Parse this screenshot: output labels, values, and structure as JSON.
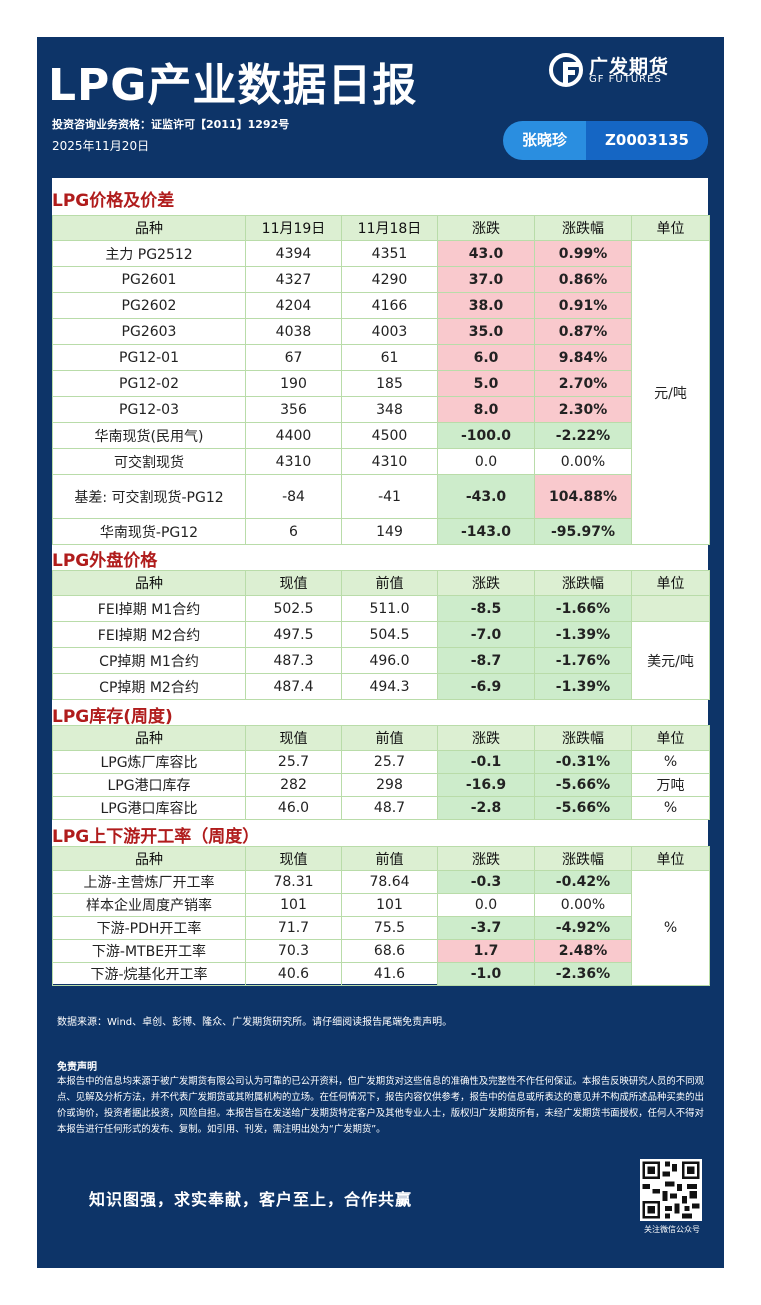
{
  "header": {
    "title": "LPG产业数据日报",
    "logo_cn": "广发期货",
    "logo_en": "GF FUTURES",
    "qualification": "投资咨询业务资格：证监许可【2011】1292号",
    "date": "2025年11月20日",
    "analyst_name": "张晓珍",
    "analyst_id": "Z0003135"
  },
  "colors": {
    "navy": "#0d3468",
    "section_red": "#b01c1c",
    "up_bg": "#f9c9cd",
    "down_bg": "#cdeccb"
  },
  "sections": {
    "price": {
      "title": "LPG价格及价差",
      "headers": [
        "品种",
        "11月19日",
        "11月18日",
        "涨跌",
        "涨跌幅",
        "单位"
      ],
      "unit": "元/吨",
      "rows": [
        {
          "name": "主力 PG2512",
          "v1": "4394",
          "v2": "4351",
          "chg": "43.0",
          "pct": "0.99%",
          "dir": "up"
        },
        {
          "name": "PG2601",
          "v1": "4327",
          "v2": "4290",
          "chg": "37.0",
          "pct": "0.86%",
          "dir": "up"
        },
        {
          "name": "PG2602",
          "v1": "4204",
          "v2": "4166",
          "chg": "38.0",
          "pct": "0.91%",
          "dir": "up"
        },
        {
          "name": "PG2603",
          "v1": "4038",
          "v2": "4003",
          "chg": "35.0",
          "pct": "0.87%",
          "dir": "up"
        },
        {
          "name": "PG12-01",
          "v1": "67",
          "v2": "61",
          "chg": "6.0",
          "pct": "9.84%",
          "dir": "up"
        },
        {
          "name": "PG12-02",
          "v1": "190",
          "v2": "185",
          "chg": "5.0",
          "pct": "2.70%",
          "dir": "up"
        },
        {
          "name": "PG12-03",
          "v1": "356",
          "v2": "348",
          "chg": "8.0",
          "pct": "2.30%",
          "dir": "up"
        },
        {
          "name": "华南现货(民用气)",
          "v1": "4400",
          "v2": "4500",
          "chg": "-100.0",
          "pct": "-2.22%",
          "dir": "down"
        },
        {
          "name": "可交割现货",
          "v1": "4310",
          "v2": "4310",
          "chg": "0.0",
          "pct": "0.00%",
          "dir": "flat"
        },
        {
          "name": "基差: 可交割现货-PG12",
          "v1": "-84",
          "v2": "-41",
          "chg": "-43.0",
          "pct": "104.88%",
          "dir": "down",
          "pct_dir": "up"
        },
        {
          "name": "华南现货-PG12",
          "v1": "6",
          "v2": "149",
          "chg": "-143.0",
          "pct": "-95.97%",
          "dir": "down"
        }
      ]
    },
    "foreign": {
      "title": "LPG外盘价格",
      "headers": [
        "品种",
        "现值",
        "前值",
        "涨跌",
        "涨跌幅",
        "单位"
      ],
      "unit": "美元/吨",
      "rows": [
        {
          "name": "FEI掉期 M1合约",
          "v1": "502.5",
          "v2": "511.0",
          "chg": "-8.5",
          "pct": "-1.66%",
          "dir": "down"
        },
        {
          "name": "FEI掉期 M2合约",
          "v1": "497.5",
          "v2": "504.5",
          "chg": "-7.0",
          "pct": "-1.39%",
          "dir": "down"
        },
        {
          "name": "CP掉期 M1合约",
          "v1": "487.3",
          "v2": "496.0",
          "chg": "-8.7",
          "pct": "-1.76%",
          "dir": "down"
        },
        {
          "name": "CP掉期 M2合约",
          "v1": "487.4",
          "v2": "494.3",
          "chg": "-6.9",
          "pct": "-1.39%",
          "dir": "down"
        }
      ]
    },
    "inventory": {
      "title": "LPG库存(周度)",
      "headers": [
        "品种",
        "现值",
        "前值",
        "涨跌",
        "涨跌幅",
        "单位"
      ],
      "rows": [
        {
          "name": "LPG炼厂库容比",
          "v1": "25.7",
          "v2": "25.7",
          "chg": "-0.1",
          "pct": "-0.31%",
          "dir": "down",
          "unit": "%"
        },
        {
          "name": "LPG港口库存",
          "v1": "282",
          "v2": "298",
          "chg": "-16.9",
          "pct": "-5.66%",
          "dir": "down",
          "unit": "万吨"
        },
        {
          "name": "LPG港口库容比",
          "v1": "46.0",
          "v2": "48.7",
          "chg": "-2.8",
          "pct": "-5.66%",
          "dir": "down",
          "unit": "%"
        }
      ]
    },
    "rates": {
      "title": "LPG上下游开工率（周度）",
      "headers": [
        "品种",
        "现值",
        "前值",
        "涨跌",
        "涨跌幅",
        "单位"
      ],
      "unit": "%",
      "rows": [
        {
          "name": "上游-主营炼厂开工率",
          "v1": "78.31",
          "v2": "78.64",
          "chg": "-0.3",
          "pct": "-0.42%",
          "dir": "down"
        },
        {
          "name": "样本企业周度产销率",
          "v1": "101",
          "v2": "101",
          "chg": "0.0",
          "pct": "0.00%",
          "dir": "flat"
        },
        {
          "name": "下游-PDH开工率",
          "v1": "71.7",
          "v2": "75.5",
          "chg": "-3.7",
          "pct": "-4.92%",
          "dir": "down"
        },
        {
          "name": "下游-MTBE开工率",
          "v1": "70.3",
          "v2": "68.6",
          "chg": "1.7",
          "pct": "2.48%",
          "dir": "up"
        },
        {
          "name": "下游-烷基化开工率",
          "v1": "40.6",
          "v2": "41.6",
          "chg": "-1.0",
          "pct": "-2.36%",
          "dir": "down"
        }
      ]
    }
  },
  "footer": {
    "source": "数据来源：Wind、卓创、彭博、隆众、广发期货研究所。请仔细阅读报告尾端免责声明。",
    "disclaimer_title": "免责声明",
    "disclaimer": "本报告中的信息均来源于被广发期货有限公司认为可靠的已公开资料，但广发期货对这些信息的准确性及完整性不作任何保证。本报告反映研究人员的不同观点、见解及分析方法，并不代表广发期货或其附属机构的立场。在任何情况下，报告内容仅供参考，报告中的信息或所表达的意见并不构成所述品种买卖的出价或询价，投资者据此投资，风险自担。本报告旨在发送给广发期货特定客户及其他专业人士，版权归广发期货所有，未经广发期货书面授权，任何人不得对本报告进行任何形式的发布、复制。如引用、刊发，需注明出处为“广发期货”。",
    "slogan": "知识图强，求实奉献，客户至上，合作共赢",
    "qr_label": "关注微信公众号"
  }
}
